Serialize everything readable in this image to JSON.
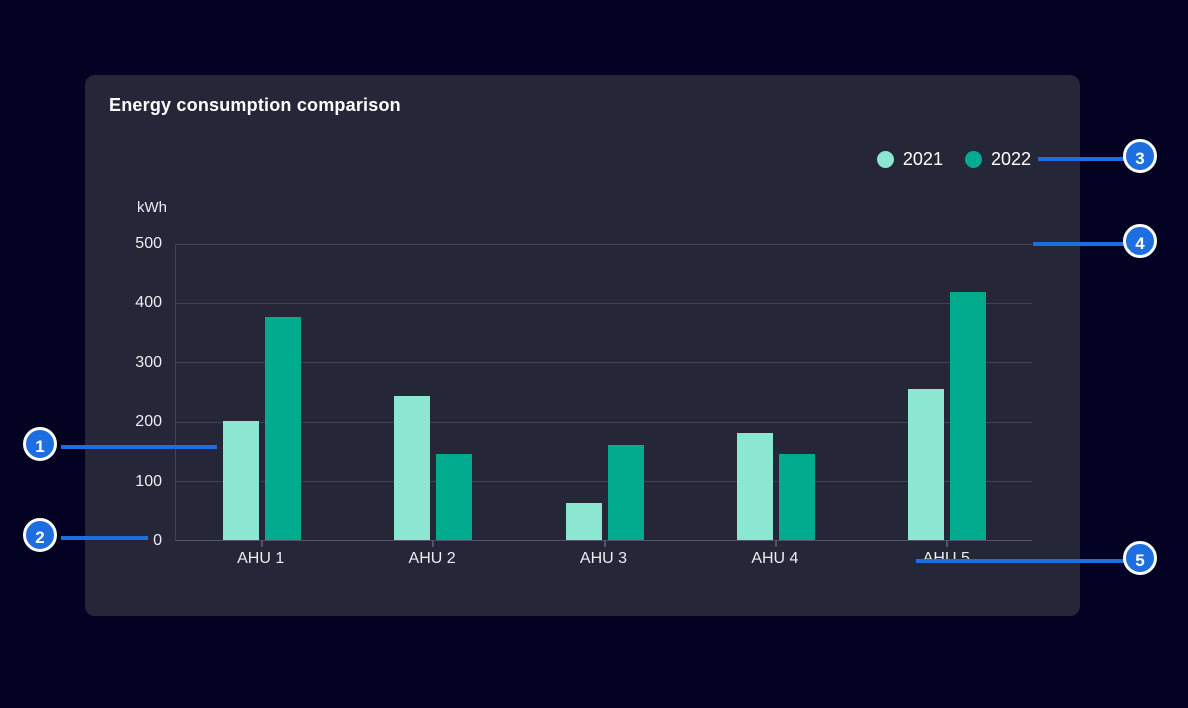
{
  "chart_data": {
    "type": "bar",
    "title": "Energy consumption comparison",
    "unit_label": "kWh",
    "categories": [
      "AHU 1",
      "AHU 2",
      "AHU 3",
      "AHU 4",
      "AHU 5"
    ],
    "series": [
      {
        "name": "2021",
        "color": "#8be7cf",
        "values": [
          200,
          242,
          62,
          180,
          255
        ]
      },
      {
        "name": "2022",
        "color": "#00ab8e",
        "values": [
          375,
          145,
          160,
          145,
          418
        ]
      }
    ],
    "y_ticks": [
      0,
      100,
      200,
      300,
      400,
      500
    ],
    "ylim": [
      0,
      500
    ],
    "grid": true,
    "legend_position": "top-right"
  },
  "callouts": [
    {
      "number": "1"
    },
    {
      "number": "2"
    },
    {
      "number": "3"
    },
    {
      "number": "4"
    },
    {
      "number": "5"
    }
  ],
  "colors": {
    "page_background": "#030222",
    "card_background": "#262639",
    "grid_line": "#41415a",
    "axis_line": "#53536d",
    "callout_accent": "#1d6fe0"
  }
}
